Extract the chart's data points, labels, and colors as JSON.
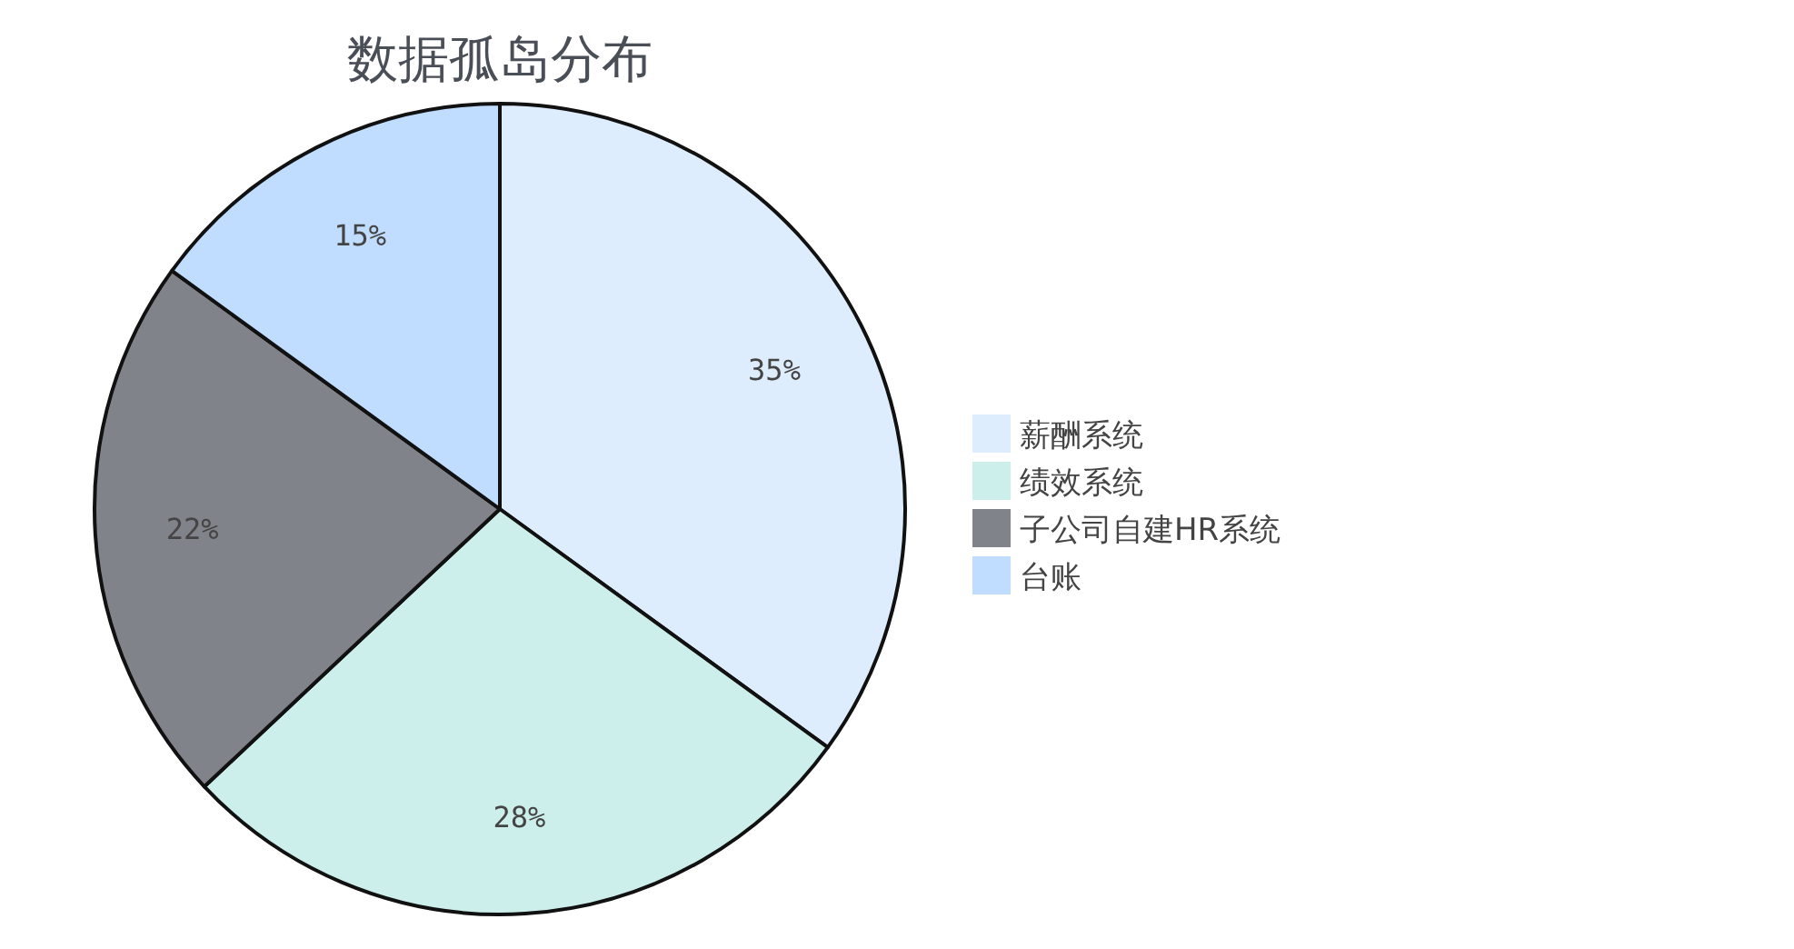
{
  "chart_data": {
    "type": "pie",
    "title": "数据孤岛分布",
    "categories": [
      "薪酬系统",
      "绩效系统",
      "子公司自建HR系统",
      "台账"
    ],
    "values": [
      35,
      28,
      22,
      15
    ],
    "colors": [
      "#deedfd",
      "#ccefec",
      "#80848a",
      "#c0dcfe"
    ],
    "value_labels": [
      "35%",
      "28%",
      "22%",
      "15%"
    ],
    "legend": "right"
  }
}
